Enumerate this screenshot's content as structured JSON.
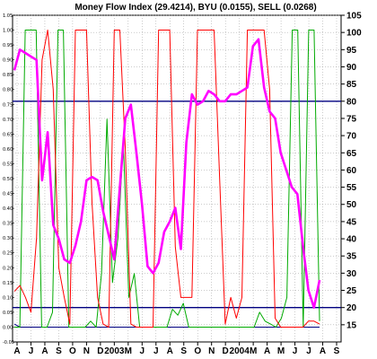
{
  "chart_data": {
    "type": "line",
    "title": "Money Flow Index (29.4214), BYU (0.0155), SELL (0.0268)",
    "x_tick_labels": [
      "A",
      "J",
      "A",
      "S",
      "O",
      "N",
      "D",
      "2003",
      "M",
      "J",
      "J",
      "A",
      "S",
      "O",
      "N",
      "D",
      "2004",
      "M",
      "A",
      "M",
      "J",
      "J",
      "A",
      "S"
    ],
    "y_right": {
      "min": 10,
      "max": 105,
      "ticks": [
        15,
        20,
        25,
        30,
        35,
        40,
        45,
        50,
        55,
        60,
        65,
        70,
        75,
        80,
        85,
        90,
        95,
        100,
        105
      ]
    },
    "y_left": {
      "min": -0.05,
      "max": 1.05,
      "ticks": [
        "-0.05",
        "0.00",
        "0.05",
        "0.10",
        "0.15",
        "0.20",
        "0.25",
        "0.30",
        "0.35",
        "0.40",
        "0.45",
        "0.50",
        "0.55",
        "0.60",
        "0.65",
        "0.70",
        "0.75",
        "0.80",
        "0.85",
        "0.90",
        "0.95",
        "1.00",
        "1.05"
      ]
    },
    "reference_lines": [
      80,
      20
    ],
    "series": [
      {
        "color": "#ff00ff",
        "axis": "right",
        "values": [
          89,
          95,
          94,
          93,
          92,
          57,
          71,
          44,
          40,
          34,
          33,
          38,
          45,
          57,
          58,
          57,
          48,
          41,
          34,
          55,
          75,
          79,
          65,
          50,
          32,
          30,
          33,
          42,
          45,
          49,
          37,
          68,
          82,
          79,
          80,
          83,
          82,
          80,
          80,
          82,
          82,
          83,
          84,
          96,
          98,
          84,
          77,
          75,
          65,
          60,
          55,
          53,
          38,
          25,
          20,
          28
        ]
      },
      {
        "color": "#00aa00",
        "axis": "left",
        "values": [
          0,
          0,
          1,
          1,
          1,
          0,
          0,
          0.05,
          1,
          1,
          0,
          0,
          0,
          0,
          0.02,
          0,
          0.18,
          0.7,
          0.15,
          0.3,
          0.62,
          0.1,
          0.18,
          0,
          0,
          0,
          0,
          0,
          0,
          0.06,
          0.04,
          0.08,
          0,
          0,
          0,
          0,
          0,
          0,
          0,
          0,
          0,
          0,
          0,
          0,
          0,
          0.05,
          0.02,
          0.01,
          0,
          0.03,
          0.1,
          1,
          1,
          0,
          1,
          1,
          0.02
        ]
      },
      {
        "color": "#ff0000",
        "axis": "left",
        "values": [
          0.12,
          0.14,
          0.1,
          0.05,
          0.3,
          0.9,
          1,
          0.8,
          0.2,
          0.1,
          0.01,
          1,
          1,
          1,
          0.42,
          0.1,
          0.01,
          0,
          1,
          1,
          0.6,
          0.01,
          0,
          0,
          0,
          0,
          1,
          1,
          1,
          0.27,
          0.1,
          0.1,
          0.1,
          1,
          1,
          1,
          1,
          0.5,
          0.01,
          0.1,
          0.03,
          0.1,
          1,
          1,
          1,
          1,
          0.8,
          0.03,
          0,
          0,
          0,
          0,
          0,
          0.02,
          0.02,
          0.01
        ]
      },
      {
        "color": "#000080",
        "axis": "left",
        "values": [
          0.01,
          0,
          0,
          0,
          0,
          0,
          0,
          0,
          0,
          0,
          0,
          0,
          0,
          0,
          0,
          0,
          0,
          0,
          0,
          0,
          0,
          0,
          0,
          0,
          0,
          0,
          0,
          0,
          0,
          0,
          0,
          0,
          0,
          0,
          0,
          0,
          0,
          0,
          0,
          0,
          0,
          0,
          0,
          0,
          0,
          0,
          0,
          0,
          0,
          0,
          0,
          0,
          0,
          0,
          0,
          0
        ]
      }
    ],
    "colors": {
      "upper_line": "#000080",
      "lower_line": "#000080"
    }
  }
}
